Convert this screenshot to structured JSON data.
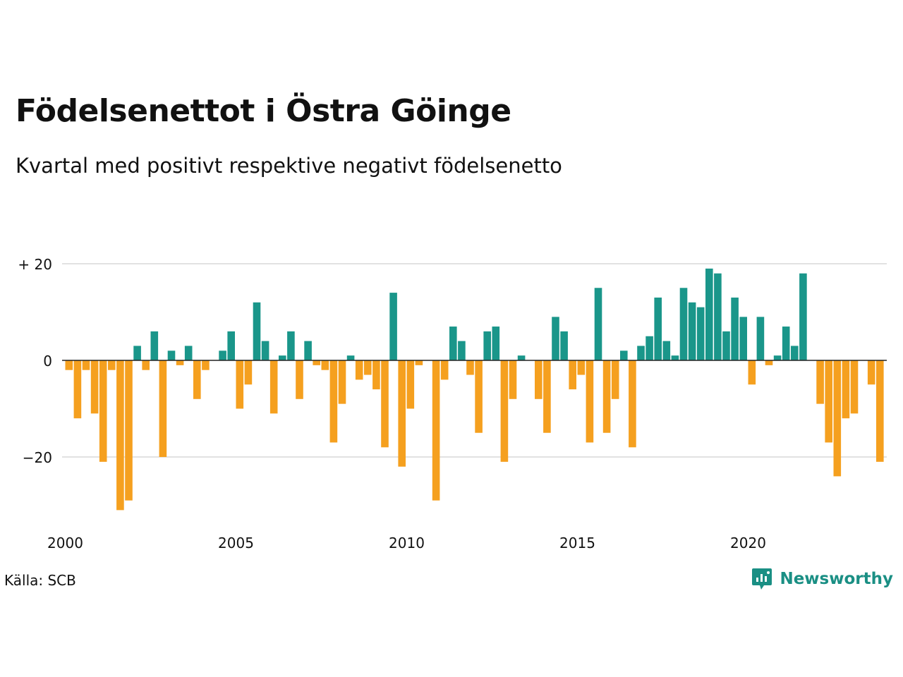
{
  "title": "Födelsenettot i Östra Göinge",
  "subtitle": "Kvartal med positivt respektive negativt födelsenetto",
  "source": "Källa: SCB",
  "brand": "Newsworthy",
  "colors": {
    "positive": "#1a968a",
    "negative": "#f5a01f",
    "grid": "#e2e2e2",
    "zero": "#222222",
    "brand": "#1a8f84"
  },
  "chart_data": {
    "type": "bar",
    "ylim": [
      -33,
      22
    ],
    "yticks": [
      {
        "value": 20,
        "label": "+ 20"
      },
      {
        "value": 0,
        "label": "0"
      },
      {
        "value": -20,
        "label": "−20"
      }
    ],
    "xticks": [
      {
        "value": 2000,
        "label": "2000"
      },
      {
        "value": 2005,
        "label": "2005"
      },
      {
        "value": 2010,
        "label": "2010"
      },
      {
        "value": 2015,
        "label": "2015"
      },
      {
        "value": 2020,
        "label": "2020"
      }
    ],
    "x_start": 2000,
    "x_end": 2024,
    "grid": true,
    "values": [
      -2,
      -12,
      -2,
      -11,
      -21,
      -2,
      -31,
      -29,
      3,
      -2,
      6,
      -20,
      2,
      -1,
      3,
      -8,
      -2,
      0,
      2,
      6,
      -10,
      -5,
      12,
      4,
      -11,
      1,
      6,
      -8,
      4,
      -1,
      -2,
      -17,
      -9,
      1,
      -4,
      -3,
      -6,
      -18,
      14,
      -22,
      -10,
      -1,
      0,
      -29,
      -4,
      7,
      4,
      -3,
      -15,
      6,
      7,
      -21,
      -8,
      1,
      0,
      -8,
      -15,
      9,
      6,
      -6,
      -3,
      -17,
      15,
      -15,
      -8,
      2,
      -18,
      3,
      5,
      13,
      4,
      1,
      15,
      12,
      11,
      19,
      18,
      6,
      13,
      9,
      -5,
      9,
      -1,
      1,
      7,
      3,
      18,
      0,
      -9,
      -17,
      -24,
      -12,
      -11,
      0,
      -5,
      -21
    ]
  }
}
